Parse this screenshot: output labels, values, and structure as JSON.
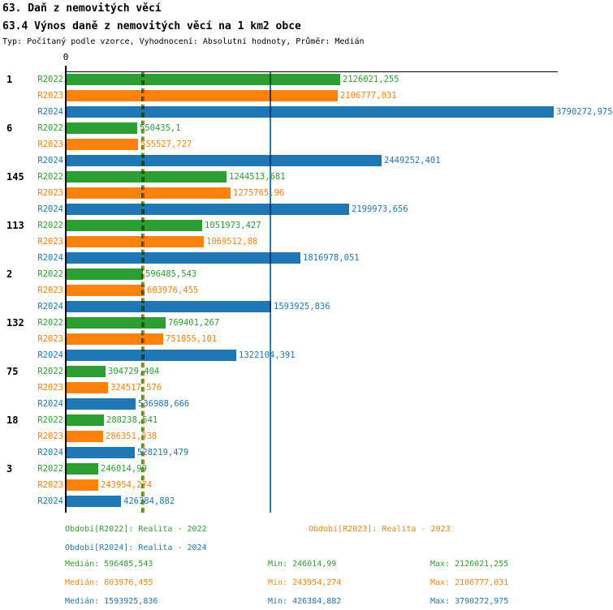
{
  "chart_data": {
    "type": "bar",
    "orientation": "horizontal",
    "title": "63. Daň z nemovitých věcí",
    "subtitle": "63.4 Výnos daně z nemovitých věcí na 1 km2 obce",
    "meta": "Typ: Počítaný podle vzorce, Vyhodnocení: Absolutní hodnoty, Průměr: Medián",
    "origin_tick_label": "0",
    "xlim": [
      0,
      3790272.975
    ],
    "grid": false,
    "legend_position": "bottom",
    "series": [
      {
        "id": "R2022",
        "name": "Období[R2022]: Realita - 2022",
        "color": "#2d9e32",
        "median": 596485.543,
        "median_line_color": "#2d9e32",
        "median_line_dashed": true
      },
      {
        "id": "R2023",
        "name": "Období[R2023]: Realita - 2023",
        "color": "#fd810d",
        "median": 603976.455,
        "median_line_color": "#c8860d",
        "median_line_dashed": true
      },
      {
        "id": "R2024",
        "name": "Období[R2024]: Realita - 2024",
        "color": "#1f77b4",
        "median": 1593925.836,
        "median_line_color": "#2878b4",
        "median_line_dashed": false
      }
    ],
    "categories": [
      "1",
      "6",
      "145",
      "113",
      "2",
      "132",
      "75",
      "18",
      "3"
    ],
    "groups": [
      {
        "category": "1",
        "values": [
          2126021.255,
          2106777.031,
          3790272.975
        ],
        "labels": [
          "2126021,255",
          "2106777,031",
          "3790272,975"
        ]
      },
      {
        "category": "6",
        "values": [
          550435.1,
          555527.727,
          2449252.401
        ],
        "labels": [
          "550435,1",
          "555527,727",
          "2449252,401"
        ]
      },
      {
        "category": "145",
        "values": [
          1244513.681,
          1275765.96,
          2199973.656
        ],
        "labels": [
          "1244513,681",
          "1275765,96",
          "2199973,656"
        ]
      },
      {
        "category": "113",
        "values": [
          1051973.427,
          1069512.88,
          1816978.051
        ],
        "labels": [
          "1051973,427",
          "1069512,88",
          "1816978,051"
        ]
      },
      {
        "category": "2",
        "values": [
          596485.543,
          603976.455,
          1593925.836
        ],
        "labels": [
          "596485,543",
          "603976,455",
          "1593925,836"
        ]
      },
      {
        "category": "132",
        "values": [
          769401.267,
          751855.101,
          1322104.391
        ],
        "labels": [
          "769401,267",
          "751855,101",
          "1322104,391"
        ]
      },
      {
        "category": "75",
        "values": [
          304729.404,
          324517.576,
          536988.666
        ],
        "labels": [
          "304729,404",
          "324517,576",
          "536988,666"
        ]
      },
      {
        "category": "18",
        "values": [
          288238.541,
          286351.038,
          528219.479
        ],
        "labels": [
          "288238,541",
          "286351,038",
          "528219,479"
        ]
      },
      {
        "category": "3",
        "values": [
          246014.99,
          243954.274,
          426384.882
        ],
        "labels": [
          "246014,99",
          "243954,274",
          "426384,882"
        ]
      }
    ],
    "row_labels": [
      "R2022",
      "R2023",
      "R2024"
    ],
    "stats": {
      "rows": [
        {
          "series": "R2022",
          "median_text": "Medián: 596485,543",
          "min_text": "Min: 246014,99",
          "max_text": "Max: 2126021,255"
        },
        {
          "series": "R2023",
          "median_text": "Medián: 603976,455",
          "min_text": "Min: 243954,274",
          "max_text": "Max: 2106777,031"
        },
        {
          "series": "R2024",
          "median_text": "Medián: 1593925,836",
          "min_text": "Min: 426384,882",
          "max_text": "Max: 3790272,975"
        }
      ]
    }
  }
}
